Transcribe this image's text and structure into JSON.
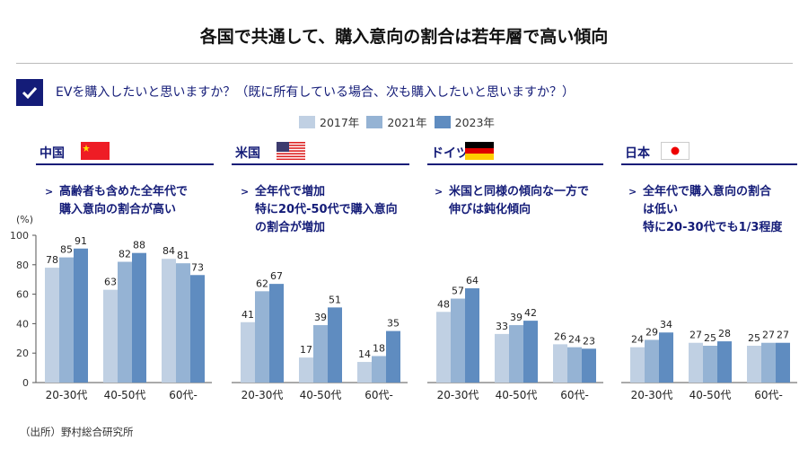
{
  "title": "各国で共通して、購入意向の割合は若年層で高い傾向",
  "question": "EVを購入したいと思いますか？（既に所有している場合、次も購入したいと思いますか？）",
  "source": "（出所）野村総合研究所",
  "colors": {
    "2017": "#c0d0e3",
    "2021": "#95b3d4",
    "2023": "#5f8cc0",
    "navy": "#141c78"
  },
  "chart_data": {
    "type": "bar",
    "ylabel": "(%)",
    "ylim": [
      0,
      100
    ],
    "yticks": [
      0,
      20,
      40,
      60,
      80,
      100
    ],
    "legend": [
      "2017年",
      "2021年",
      "2023年"
    ],
    "legend_placement": "top-center",
    "categories": [
      "20-30代",
      "40-50代",
      "60代-"
    ],
    "panels": [
      {
        "country": "中国",
        "note": [
          "高齢者も含めた全年代で",
          "購入意向の割合が高い"
        ],
        "series": [
          {
            "name": "2017年",
            "values": [
              78,
              63,
              84
            ]
          },
          {
            "name": "2021年",
            "values": [
              85,
              82,
              81
            ]
          },
          {
            "name": "2023年",
            "values": [
              91,
              88,
              73
            ]
          }
        ]
      },
      {
        "country": "米国",
        "note": [
          "全年代で増加",
          "特に20代-50代で購入意向",
          "の割合が増加"
        ],
        "series": [
          {
            "name": "2017年",
            "values": [
              41,
              17,
              14
            ]
          },
          {
            "name": "2021年",
            "values": [
              62,
              39,
              18
            ]
          },
          {
            "name": "2023年",
            "values": [
              67,
              51,
              35
            ]
          }
        ]
      },
      {
        "country": "ドイツ",
        "note": [
          "米国と同様の傾向な一方で",
          "伸びは鈍化傾向"
        ],
        "series": [
          {
            "name": "2017年",
            "values": [
              48,
              33,
              26
            ]
          },
          {
            "name": "2021年",
            "values": [
              57,
              39,
              24
            ]
          },
          {
            "name": "2023年",
            "values": [
              64,
              42,
              23
            ]
          }
        ]
      },
      {
        "country": "日本",
        "note": [
          "全年代で購入意向の割合",
          "は低い",
          "特に20-30代でも1/3程度"
        ],
        "series": [
          {
            "name": "2017年",
            "values": [
              24,
              27,
              25
            ]
          },
          {
            "name": "2021年",
            "values": [
              29,
              25,
              27
            ]
          },
          {
            "name": "2023年",
            "values": [
              34,
              28,
              27
            ]
          }
        ]
      }
    ]
  }
}
